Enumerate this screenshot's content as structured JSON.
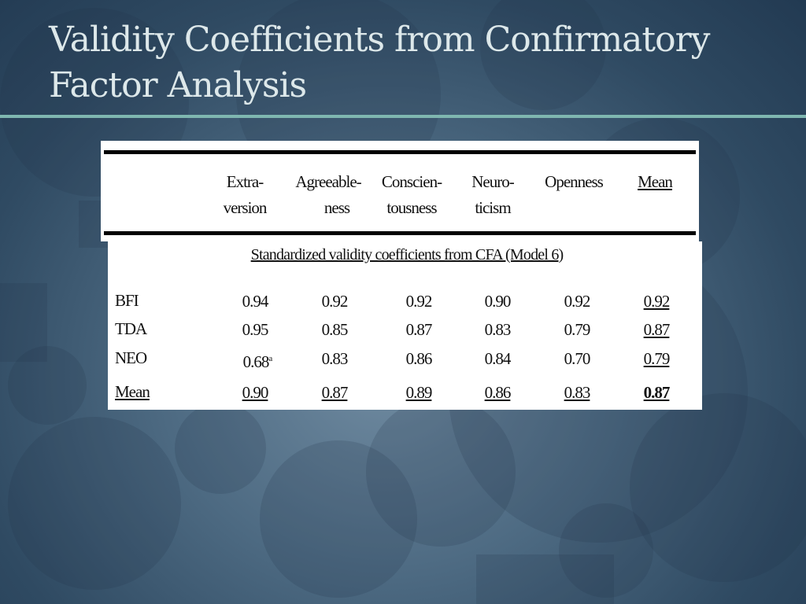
{
  "slide": {
    "title_line1": "Validity Coefficients from Confirmatory",
    "title_line2": "Factor Analysis"
  },
  "table": {
    "columns": [
      {
        "line1": "Extra-",
        "line2": "version"
      },
      {
        "line1": "Agreeable-",
        "line2": "ness"
      },
      {
        "line1": "Conscien-",
        "line2": "tousness"
      },
      {
        "line1": "Neuro-",
        "line2": "ticism"
      },
      {
        "line1": "Openness",
        "line2": ""
      },
      {
        "line1": "Mean",
        "line2": ""
      }
    ],
    "section_title": "Standardized validity coefficients from CFA (Model 6)",
    "rows": [
      {
        "label": "BFI",
        "values": [
          "0.94",
          "0.92",
          "0.92",
          "0.90",
          "0.92",
          "0.92"
        ]
      },
      {
        "label": "TDA",
        "values": [
          "0.95",
          "0.85",
          "0.87",
          "0.83",
          "0.79",
          "0.87"
        ]
      },
      {
        "label": "NEO",
        "values": [
          "0.68",
          "0.83",
          "0.86",
          "0.84",
          "0.70",
          "0.79"
        ],
        "footnote_mark": "a"
      },
      {
        "label": "Mean",
        "values": [
          "0.90",
          "0.87",
          "0.89",
          "0.86",
          "0.83",
          "0.87"
        ]
      }
    ]
  }
}
